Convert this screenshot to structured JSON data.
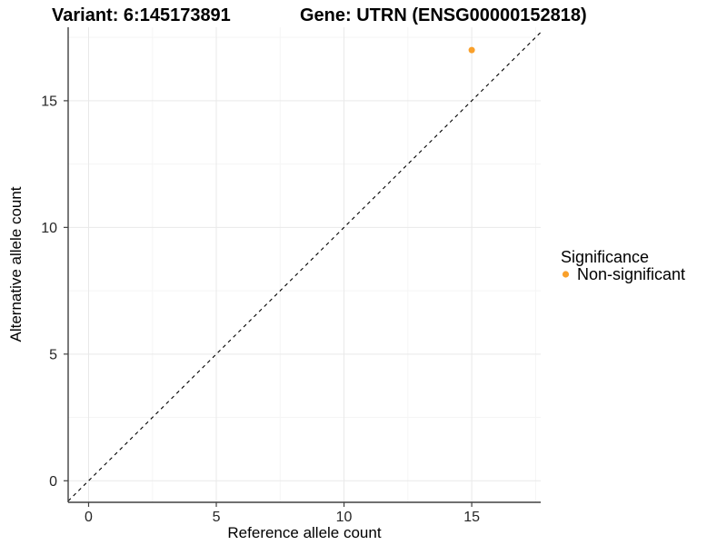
{
  "chart_data": {
    "type": "scatter",
    "titles": {
      "variant": "Variant: 6:145173891",
      "gene": "Gene: UTRN (ENSG00000152818)"
    },
    "xlabel": "Reference allele count",
    "ylabel": "Alternative allele count",
    "xlim": [
      -0.8,
      17.7
    ],
    "ylim": [
      -0.85,
      17.9
    ],
    "xticks": [
      0,
      5,
      10,
      15
    ],
    "yticks": [
      0,
      5,
      10,
      15
    ],
    "xminor": [
      2.5,
      7.5,
      12.5,
      17.5
    ],
    "yminor": [
      2.5,
      7.5,
      12.5,
      17.5
    ],
    "grid": true,
    "points": [
      {
        "x": 15,
        "y": 17,
        "series": "Non-significant",
        "color": "#F9A02B",
        "radius_px": 3.5
      }
    ],
    "abline": {
      "slope": 1,
      "intercept": 0,
      "linestyle": "dashed",
      "color": "#000000",
      "dash": "4 4"
    },
    "legend": {
      "title": "Significance",
      "position": "right",
      "items": [
        {
          "label": "Non-significant",
          "color": "#F9A02B"
        }
      ]
    },
    "colors": {
      "background": "#FFFFFF",
      "grid_major": "#E9E9E9",
      "grid_minor": "#F5F5F5",
      "axis_line": "#404040",
      "tick_mark": "#404040",
      "tick_label": "#262626",
      "text": "#000000"
    }
  }
}
